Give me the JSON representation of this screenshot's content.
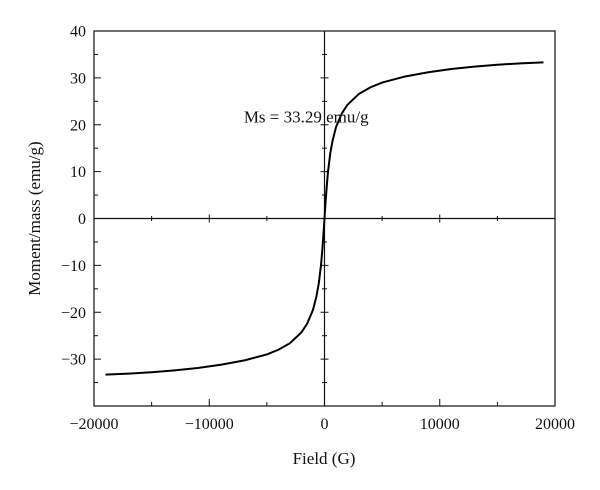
{
  "chart_data": {
    "type": "line",
    "title": "",
    "xlabel": "Field (G)",
    "ylabel": "Moment/mass (emu/g)",
    "xlim": [
      -20000,
      20000
    ],
    "ylim": [
      -40,
      40
    ],
    "xticks": [
      -20000,
      -10000,
      0,
      10000,
      20000
    ],
    "xtick_labels": [
      "−20000",
      "−10000",
      "0",
      "10000",
      "20000"
    ],
    "yticks": [
      -30,
      -20,
      -10,
      0,
      10,
      20,
      30,
      40
    ],
    "ytick_labels": [
      "−30",
      "−20",
      "−10",
      "0",
      "10",
      "20",
      "30",
      "40"
    ],
    "grid": false,
    "zero_lines": true,
    "annotation": {
      "text": "Ms = 33.29 emu/g",
      "x": -7000,
      "y": 20.5
    },
    "series": [
      {
        "color": "#000000",
        "x": [
          -19000,
          -17000,
          -15000,
          -13000,
          -11000,
          -9000,
          -7000,
          -5000,
          -4000,
          -3000,
          -2000,
          -1500,
          -1000,
          -700,
          -500,
          -300,
          -200,
          -100,
          -50,
          0,
          50,
          100,
          200,
          300,
          500,
          700,
          1000,
          1500,
          2000,
          3000,
          4000,
          5000,
          7000,
          9000,
          11000,
          13000,
          15000,
          17000,
          19000
        ],
        "y": [
          -33.3,
          -33.1,
          -32.8,
          -32.4,
          -31.9,
          -31.2,
          -30.3,
          -29.0,
          -28.0,
          -26.6,
          -24.3,
          -22.4,
          -19.5,
          -16.6,
          -13.9,
          -9.9,
          -7.0,
          -3.7,
          -1.9,
          0.0,
          1.9,
          3.7,
          7.0,
          9.9,
          13.9,
          16.6,
          19.5,
          22.4,
          24.3,
          26.6,
          28.0,
          29.0,
          30.3,
          31.2,
          31.9,
          32.4,
          32.8,
          33.1,
          33.3
        ]
      }
    ]
  }
}
